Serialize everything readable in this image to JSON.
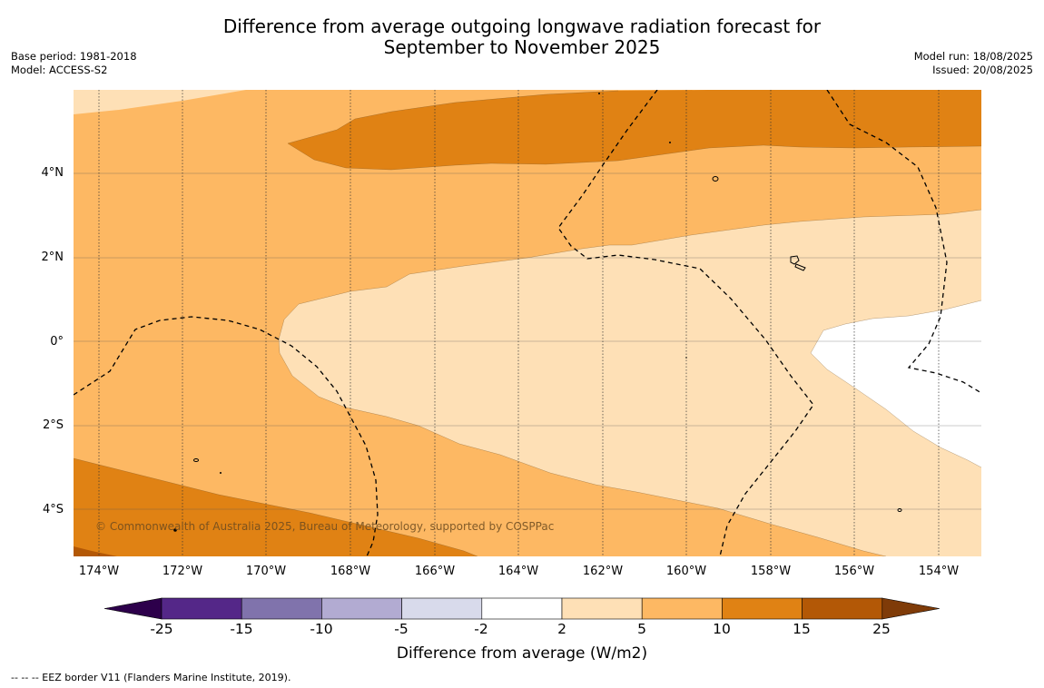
{
  "header": {
    "title_line1": "Difference from average outgoing longwave radiation forecast for",
    "title_line2": "September to November 2025",
    "base_period": "Base period: 1981-2018",
    "model": "Model: ACCESS-S2",
    "model_run": "Model run: 18/08/2025",
    "issued": "Issued: 20/08/2025"
  },
  "map": {
    "lat_ticks": [
      "4°N",
      "2°N",
      "0°",
      "2°S",
      "4°S"
    ],
    "lon_ticks": [
      "174°W",
      "172°W",
      "170°W",
      "168°W",
      "166°W",
      "164°W",
      "162°W",
      "160°W",
      "158°W",
      "156°W",
      "154°W"
    ],
    "copyright": "© Commonwealth of Australia 2025, Bureau of Meteorology, supported by COSPPac"
  },
  "colorbar": {
    "ticks": [
      "-25",
      "-15",
      "-10",
      "-5",
      "-2",
      "2",
      "5",
      "10",
      "15",
      "25"
    ],
    "colors": [
      "#2d004b",
      "#542788",
      "#8073ac",
      "#b2abd2",
      "#d8daeb",
      "#ffffff",
      "#fee0b6",
      "#fdb863",
      "#e08214",
      "#b35806",
      "#7f3b08"
    ],
    "label": "Difference from average (W/m2)"
  },
  "footnote": "--  --  -- EEZ border V11 (Flanders Marine Institute, 2019)."
}
